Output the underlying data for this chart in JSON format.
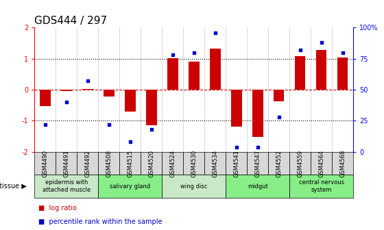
{
  "title": "GDS444 / 297",
  "samples": [
    "GSM4490",
    "GSM4491",
    "GSM4492",
    "GSM4508",
    "GSM4515",
    "GSM4520",
    "GSM4524",
    "GSM4530",
    "GSM4534",
    "GSM4541",
    "GSM4547",
    "GSM4552",
    "GSM4559",
    "GSM4564",
    "GSM4568"
  ],
  "log_ratio": [
    -0.52,
    -0.05,
    0.02,
    -0.22,
    -0.7,
    -1.15,
    1.02,
    0.9,
    1.32,
    -1.18,
    -1.52,
    -0.38,
    1.08,
    1.28,
    1.04
  ],
  "percentile": [
    22,
    40,
    57,
    22,
    8,
    18,
    78,
    80,
    96,
    4,
    4,
    28,
    82,
    88,
    80
  ],
  "tissue_groups": [
    {
      "label": "epidermis with\nattached muscle",
      "start": 0,
      "end": 3,
      "color": "#c8e8c8"
    },
    {
      "label": "salivary gland",
      "start": 3,
      "end": 6,
      "color": "#88ee88"
    },
    {
      "label": "wing disc",
      "start": 6,
      "end": 9,
      "color": "#c8e8c8"
    },
    {
      "label": "midgut",
      "start": 9,
      "end": 12,
      "color": "#88ee88"
    },
    {
      "label": "central nervous\nsystem",
      "start": 12,
      "end": 15,
      "color": "#88ee88"
    }
  ],
  "ylim": [
    -2,
    2
  ],
  "ylim_right": [
    0,
    100
  ],
  "bar_color": "#cc0000",
  "dot_color": "#0000cc",
  "zero_line_color": "#cc0000",
  "grid_color": "#000000",
  "sample_box_color": "#d8d8d8",
  "bg_color": "#ffffff",
  "title_fontsize": 11,
  "tick_fontsize": 7,
  "label_fontsize": 6
}
